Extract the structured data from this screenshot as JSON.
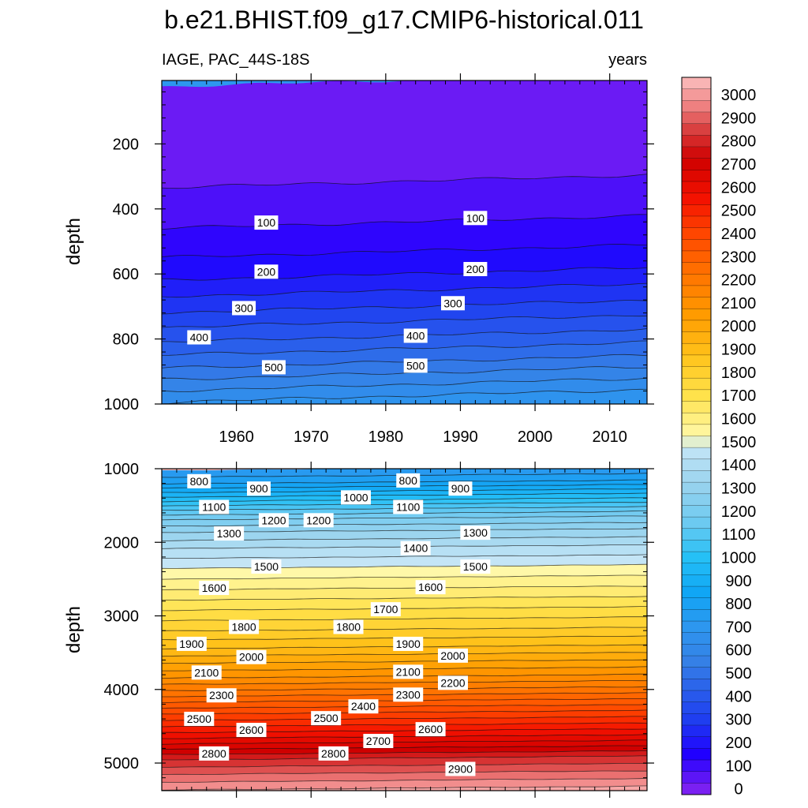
{
  "figure": {
    "title": "b.e21.BHIST.f09_g17.CMIP6-historical.011"
  },
  "chart_data": [
    {
      "type": "heatmap",
      "panel": "upper",
      "left_label": "IAGE, PAC_44S-18S",
      "right_label": "years",
      "xlabel": "",
      "ylabel": "depth",
      "xlim": [
        1950,
        2015
      ],
      "ylim": [
        1000,
        5
      ],
      "x_ticks": [
        1960,
        1970,
        1980,
        1990,
        2000,
        2010
      ],
      "y_ticks": [
        200,
        400,
        600,
        800,
        1000
      ],
      "contour_levels": [
        0,
        100,
        200,
        300,
        400,
        500,
        600
      ],
      "contour_profile": [
        [
          0,
          5
        ],
        [
          50,
          315
        ],
        [
          100,
          440
        ],
        [
          150,
          530
        ],
        [
          200,
          600
        ],
        [
          250,
          650
        ],
        [
          300,
          700
        ],
        [
          350,
          745
        ],
        [
          400,
          790
        ],
        [
          450,
          830
        ],
        [
          500,
          870
        ],
        [
          550,
          905
        ],
        [
          600,
          940
        ],
        [
          650,
          975
        ],
        [
          700,
          1010
        ]
      ],
      "trend_depth_per_decade": -6,
      "contour_labels": [
        {
          "text": "100",
          "year": 1964,
          "depth": 442
        },
        {
          "text": "100",
          "year": 1992,
          "depth": 428
        },
        {
          "text": "200",
          "year": 1964,
          "depth": 593
        },
        {
          "text": "200",
          "year": 1992,
          "depth": 585
        },
        {
          "text": "300",
          "year": 1961,
          "depth": 705
        },
        {
          "text": "300",
          "year": 1989,
          "depth": 690
        },
        {
          "text": "400",
          "year": 1955,
          "depth": 795
        },
        {
          "text": "400",
          "year": 1984,
          "depth": 790
        },
        {
          "text": "500",
          "year": 1965,
          "depth": 887
        },
        {
          "text": "500",
          "year": 1984,
          "depth": 882
        }
      ]
    },
    {
      "type": "heatmap",
      "panel": "lower",
      "xlabel": "",
      "ylabel": "depth",
      "xlim": [
        1950,
        2015
      ],
      "ylim": [
        5375,
        1000
      ],
      "x_ticks": [
        1960,
        1970,
        1980,
        1990,
        2000,
        2010
      ],
      "y_ticks": [
        1000,
        2000,
        3000,
        4000,
        5000
      ],
      "contour_levels": [
        700,
        800,
        900,
        1000,
        1100,
        1200,
        1300,
        1400,
        1500,
        1600,
        1700,
        1800,
        1900,
        2000,
        2100,
        2200,
        2300,
        2400,
        2500,
        2600,
        2700,
        2800,
        2900,
        3000
      ],
      "contour_profile": [
        [
          700,
          1000
        ],
        [
          800,
          1180
        ],
        [
          900,
          1300
        ],
        [
          1000,
          1420
        ],
        [
          1100,
          1540
        ],
        [
          1200,
          1670
        ],
        [
          1300,
          1840
        ],
        [
          1400,
          2060
        ],
        [
          1500,
          2330
        ],
        [
          1600,
          2620
        ],
        [
          1700,
          2900
        ],
        [
          1800,
          3180
        ],
        [
          1900,
          3420
        ],
        [
          2000,
          3620
        ],
        [
          2100,
          3820
        ],
        [
          2200,
          3990
        ],
        [
          2300,
          4150
        ],
        [
          2400,
          4310
        ],
        [
          2500,
          4480
        ],
        [
          2600,
          4640
        ],
        [
          2700,
          4790
        ],
        [
          2800,
          4930
        ],
        [
          2900,
          5130
        ],
        [
          3000,
          5340
        ],
        [
          3050,
          5420
        ]
      ],
      "trend_depth_per_decade": -8,
      "contour_labels": [
        {
          "text": "800",
          "year": 1955,
          "depth": 1170
        },
        {
          "text": "900",
          "year": 1963,
          "depth": 1270
        },
        {
          "text": "1000",
          "year": 1976,
          "depth": 1390
        },
        {
          "text": "800",
          "year": 1983,
          "depth": 1160
        },
        {
          "text": "900",
          "year": 1990,
          "depth": 1270
        },
        {
          "text": "1100",
          "year": 1957,
          "depth": 1520
        },
        {
          "text": "1100",
          "year": 1983,
          "depth": 1520
        },
        {
          "text": "1200",
          "year": 1965,
          "depth": 1700
        },
        {
          "text": "1200",
          "year": 1971,
          "depth": 1700
        },
        {
          "text": "1300",
          "year": 1959,
          "depth": 1880
        },
        {
          "text": "1300",
          "year": 1992,
          "depth": 1870
        },
        {
          "text": "1400",
          "year": 1984,
          "depth": 2080
        },
        {
          "text": "1500",
          "year": 1964,
          "depth": 2330
        },
        {
          "text": "1500",
          "year": 1992,
          "depth": 2330
        },
        {
          "text": "1600",
          "year": 1957,
          "depth": 2620
        },
        {
          "text": "1600",
          "year": 1986,
          "depth": 2610
        },
        {
          "text": "1700",
          "year": 1980,
          "depth": 2910
        },
        {
          "text": "1800",
          "year": 1961,
          "depth": 3150
        },
        {
          "text": "1800",
          "year": 1975,
          "depth": 3150
        },
        {
          "text": "1900",
          "year": 1954,
          "depth": 3380
        },
        {
          "text": "1900",
          "year": 1983,
          "depth": 3380
        },
        {
          "text": "2000",
          "year": 1962,
          "depth": 3560
        },
        {
          "text": "2000",
          "year": 1989,
          "depth": 3540
        },
        {
          "text": "2100",
          "year": 1956,
          "depth": 3770
        },
        {
          "text": "2100",
          "year": 1983,
          "depth": 3760
        },
        {
          "text": "2200",
          "year": 1989,
          "depth": 3910
        },
        {
          "text": "2300",
          "year": 1958,
          "depth": 4080
        },
        {
          "text": "2300",
          "year": 1983,
          "depth": 4070
        },
        {
          "text": "2400",
          "year": 1977,
          "depth": 4230
        },
        {
          "text": "2500",
          "year": 1955,
          "depth": 4400
        },
        {
          "text": "2500",
          "year": 1972,
          "depth": 4390
        },
        {
          "text": "2600",
          "year": 1962,
          "depth": 4550
        },
        {
          "text": "2600",
          "year": 1986,
          "depth": 4540
        },
        {
          "text": "2700",
          "year": 1979,
          "depth": 4700
        },
        {
          "text": "2800",
          "year": 1957,
          "depth": 4870
        },
        {
          "text": "2800",
          "year": 1973,
          "depth": 4870
        },
        {
          "text": "2900",
          "year": 1990,
          "depth": 5080
        }
      ]
    },
    {
      "type": "colorbar",
      "levels": [
        0,
        100,
        200,
        300,
        400,
        500,
        600,
        700,
        800,
        900,
        1000,
        1100,
        1200,
        1300,
        1400,
        1500,
        1600,
        1700,
        1800,
        1900,
        2000,
        2100,
        2200,
        2300,
        2400,
        2500,
        2600,
        2700,
        2800,
        2900,
        3000
      ],
      "bin_width": 50,
      "range": [
        -25,
        3075
      ],
      "unit": "years"
    }
  ]
}
